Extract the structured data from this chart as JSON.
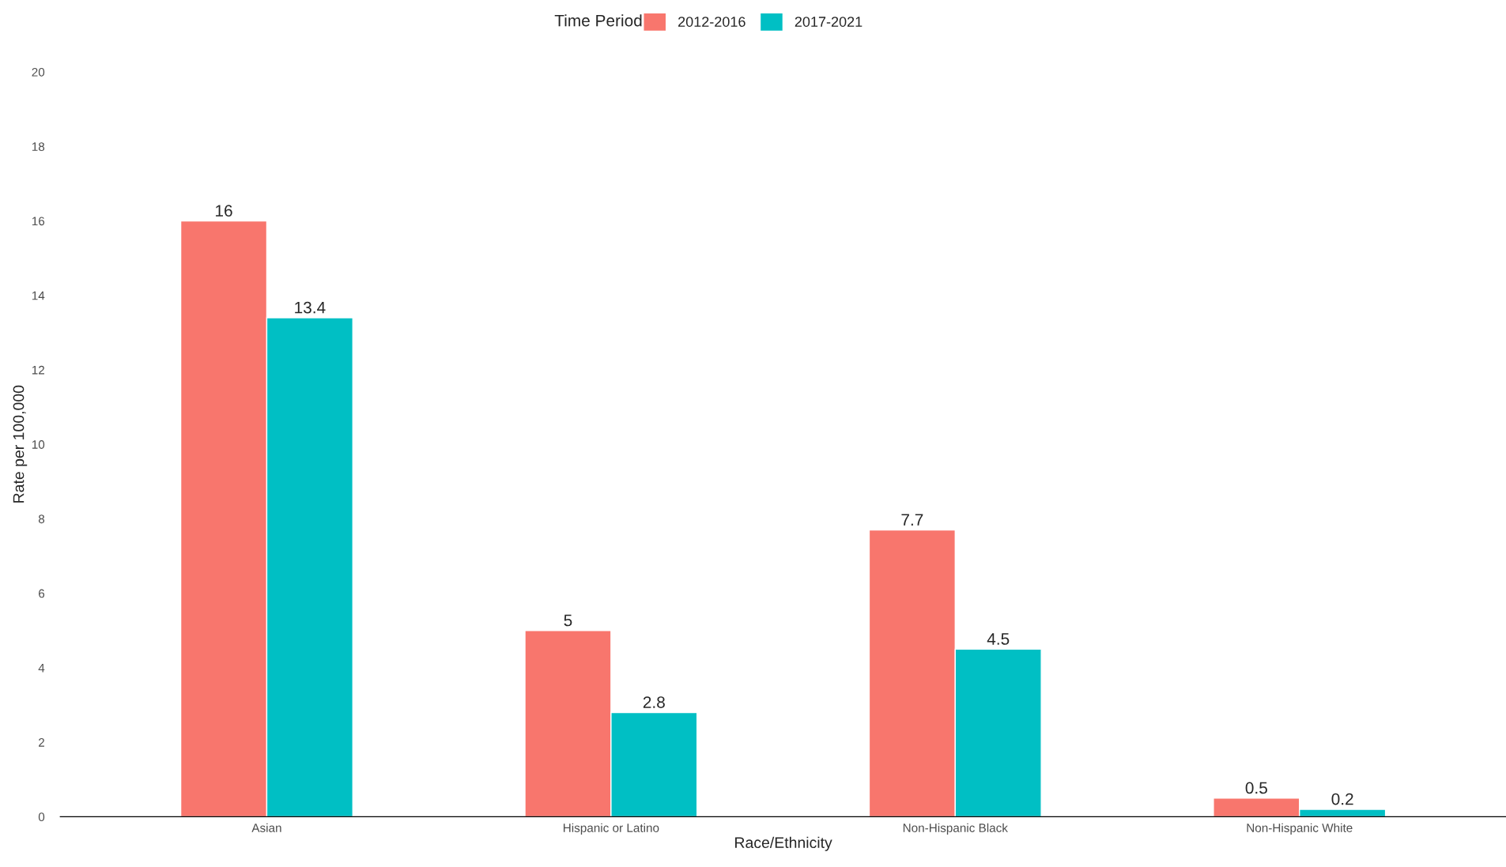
{
  "chart_data": {
    "type": "bar",
    "xlabel": "Race/Ethnicity",
    "ylabel": "Rate per 100,000",
    "legend_title": "Time Period",
    "legend": "top",
    "categories": [
      "Asian",
      "Hispanic or Latino",
      "Non-Hispanic Black",
      "Non-Hispanic White"
    ],
    "series": [
      {
        "name": "2012-2016",
        "color": "#f8766d",
        "values": [
          16,
          5,
          7.7,
          0.5
        ]
      },
      {
        "name": "2017-2021",
        "color": "#00bfc4",
        "values": [
          13.4,
          2.8,
          4.5,
          0.2
        ]
      }
    ],
    "ylim": [
      0,
      20
    ],
    "yticks": [
      0,
      2,
      4,
      6,
      8,
      10,
      12,
      14,
      16,
      18,
      20
    ],
    "grid": false,
    "data_labels": true
  }
}
